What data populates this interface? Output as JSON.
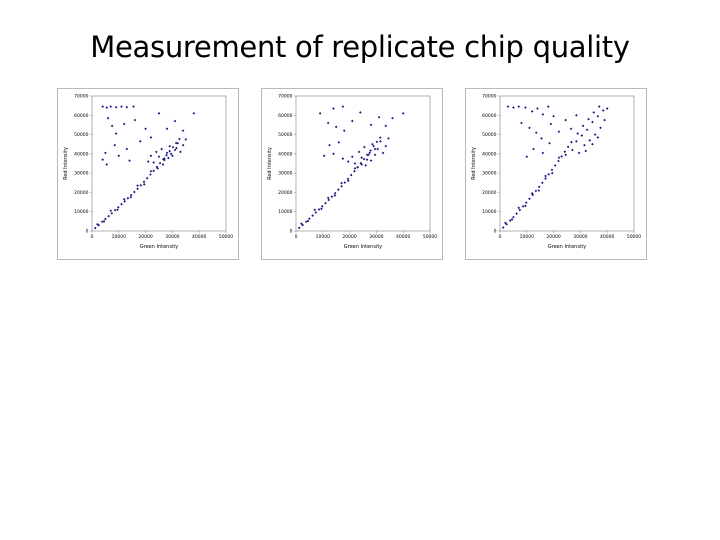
{
  "slide": {
    "title": "Measurement of replicate chip quality"
  },
  "style": {
    "marker_color": "#1a1a80",
    "plot_border": "#808080",
    "panel_border": "#b8b8b8"
  },
  "chart_data": [
    {
      "type": "scatter",
      "title": "",
      "xlabel": "Green Intensity",
      "ylabel": "Red Intensity",
      "xlim": [
        0,
        50000
      ],
      "ylim": [
        0,
        70000
      ],
      "xticks": [
        "0",
        "10000",
        "20000",
        "30000",
        "40000",
        "50000"
      ],
      "yticks": [
        "0",
        "10000",
        "20000",
        "30000",
        "40000",
        "50000",
        "60000",
        "70000"
      ],
      "grid": false,
      "series": [
        {
          "points": [
            [
              1200,
              1500
            ],
            [
              2500,
              3000
            ],
            [
              3800,
              4800
            ],
            [
              5000,
              6200
            ],
            [
              6200,
              7700
            ],
            [
              7400,
              9200
            ],
            [
              8600,
              10800
            ],
            [
              9800,
              12300
            ],
            [
              11000,
              13900
            ],
            [
              12200,
              15400
            ],
            [
              13400,
              17000
            ],
            [
              14600,
              18600
            ],
            [
              15800,
              20200
            ],
            [
              17000,
              21900
            ],
            [
              18200,
              23700
            ],
            [
              19400,
              25500
            ],
            [
              20600,
              27400
            ],
            [
              21800,
              29300
            ],
            [
              23000,
              31200
            ],
            [
              24200,
              33200
            ],
            [
              25400,
              35200
            ],
            [
              26600,
              37200
            ],
            [
              27800,
              39300
            ],
            [
              29000,
              41400
            ],
            [
              30200,
              43500
            ],
            [
              31400,
              45600
            ],
            [
              32600,
              47700
            ],
            [
              2000,
              3500
            ],
            [
              4500,
              5000
            ],
            [
              7000,
              10500
            ],
            [
              9500,
              11000
            ],
            [
              12000,
              16500
            ],
            [
              14500,
              17500
            ],
            [
              17000,
              23500
            ],
            [
              19500,
              24200
            ],
            [
              22000,
              31000
            ],
            [
              24500,
              32500
            ],
            [
              27000,
              37500
            ],
            [
              29500,
              40000
            ],
            [
              31500,
              43000
            ],
            [
              21000,
              36000
            ],
            [
              22000,
              39000
            ],
            [
              23000,
              35500
            ],
            [
              24000,
              41000
            ],
            [
              25000,
              38500
            ],
            [
              26000,
              42500
            ],
            [
              27000,
              36800
            ],
            [
              28000,
              40500
            ],
            [
              29000,
              44000
            ],
            [
              30000,
              39000
            ],
            [
              31000,
              42000
            ],
            [
              32000,
              45500
            ],
            [
              33000,
              41000
            ],
            [
              34000,
              44500
            ],
            [
              35000,
              47500
            ],
            [
              28500,
              37800
            ],
            [
              26500,
              34500
            ],
            [
              4000,
              64500
            ],
            [
              5500,
              64000
            ],
            [
              7000,
              64500
            ],
            [
              9000,
              64200
            ],
            [
              11000,
              64500
            ],
            [
              13000,
              64200
            ],
            [
              15500,
              64500
            ],
            [
              6000,
              58500
            ],
            [
              7500,
              54500
            ],
            [
              9000,
              50500
            ],
            [
              12000,
              55500
            ],
            [
              16000,
              57500
            ],
            [
              18000,
              46500
            ],
            [
              20000,
              53000
            ],
            [
              22000,
              48500
            ],
            [
              25000,
              61000
            ],
            [
              28000,
              53000
            ],
            [
              31000,
              57000
            ],
            [
              34000,
              52000
            ],
            [
              38000,
              61000
            ],
            [
              4000,
              37000
            ],
            [
              5000,
              40500
            ],
            [
              5500,
              34500
            ],
            [
              8500,
              44500
            ],
            [
              10000,
              39000
            ],
            [
              13000,
              42500
            ],
            [
              14000,
              36500
            ]
          ]
        }
      ]
    },
    {
      "type": "scatter",
      "title": "",
      "xlabel": "Green Intensity",
      "ylabel": "Red Intensity",
      "xlim": [
        0,
        50000
      ],
      "ylim": [
        0,
        70000
      ],
      "xticks": [
        "0",
        "10000",
        "20000",
        "30000",
        "40000",
        "50000"
      ],
      "yticks": [
        "0",
        "10000",
        "20000",
        "30000",
        "40000",
        "50000",
        "60000",
        "70000"
      ],
      "grid": false,
      "series": [
        {
          "points": [
            [
              1200,
              1600
            ],
            [
              2500,
              3100
            ],
            [
              3800,
              4800
            ],
            [
              5000,
              6400
            ],
            [
              6200,
              8000
            ],
            [
              7400,
              9600
            ],
            [
              8600,
              11200
            ],
            [
              9800,
              12800
            ],
            [
              11000,
              14400
            ],
            [
              12200,
              16100
            ],
            [
              13400,
              17800
            ],
            [
              14600,
              19600
            ],
            [
              15800,
              21400
            ],
            [
              17000,
              23200
            ],
            [
              18200,
              25100
            ],
            [
              19400,
              27000
            ],
            [
              20600,
              29000
            ],
            [
              21800,
              31000
            ],
            [
              23000,
              33100
            ],
            [
              24200,
              35200
            ],
            [
              25400,
              37300
            ],
            [
              26600,
              39500
            ],
            [
              27800,
              41700
            ],
            [
              29000,
              44000
            ],
            [
              30200,
              46200
            ],
            [
              31400,
              48400
            ],
            [
              2000,
              3800
            ],
            [
              4500,
              5200
            ],
            [
              7000,
              11000
            ],
            [
              9500,
              11500
            ],
            [
              12000,
              17200
            ],
            [
              14500,
              18400
            ],
            [
              17000,
              24800
            ],
            [
              19500,
              26000
            ],
            [
              22000,
              32500
            ],
            [
              24500,
              34500
            ],
            [
              27000,
              39500
            ],
            [
              29500,
              42500
            ],
            [
              19500,
              36000
            ],
            [
              21000,
              38500
            ],
            [
              22000,
              35000
            ],
            [
              23500,
              41000
            ],
            [
              24500,
              38000
            ],
            [
              25500,
              43500
            ],
            [
              26500,
              37000
            ],
            [
              27500,
              40500
            ],
            [
              28500,
              45000
            ],
            [
              29500,
              39500
            ],
            [
              30500,
              42500
            ],
            [
              31500,
              46500
            ],
            [
              32500,
              40500
            ],
            [
              33500,
              44000
            ],
            [
              34500,
              48000
            ],
            [
              28000,
              36500
            ],
            [
              26000,
              34000
            ],
            [
              23000,
              33000
            ],
            [
              14000,
              63500
            ],
            [
              17500,
              64500
            ],
            [
              9000,
              61000
            ],
            [
              12000,
              56000
            ],
            [
              15000,
              54000
            ],
            [
              18000,
              52000
            ],
            [
              21000,
              57000
            ],
            [
              24000,
              61500
            ],
            [
              28000,
              55000
            ],
            [
              31000,
              59000
            ],
            [
              33500,
              54500
            ],
            [
              36000,
              58500
            ],
            [
              40000,
              61000
            ],
            [
              10500,
              39000
            ],
            [
              12500,
              44500
            ],
            [
              14000,
              40000
            ],
            [
              16000,
              46000
            ],
            [
              17500,
              37500
            ]
          ]
        }
      ]
    },
    {
      "type": "scatter",
      "title": "",
      "xlabel": "Green Intensity",
      "ylabel": "Red Intensity",
      "xlim": [
        0,
        50000
      ],
      "ylim": [
        0,
        70000
      ],
      "xticks": [
        "0",
        "10000",
        "20000",
        "30000",
        "40000",
        "50000"
      ],
      "yticks": [
        "0",
        "10000",
        "20000",
        "30000",
        "40000",
        "50000",
        "60000",
        "70000"
      ],
      "grid": false,
      "series": [
        {
          "points": [
            [
              1200,
              1800
            ],
            [
              2500,
              3500
            ],
            [
              3800,
              5400
            ],
            [
              5000,
              7200
            ],
            [
              6200,
              9000
            ],
            [
              7400,
              10900
            ],
            [
              8600,
              12800
            ],
            [
              9800,
              14700
            ],
            [
              11000,
              16700
            ],
            [
              12200,
              18700
            ],
            [
              13400,
              20800
            ],
            [
              14600,
              22900
            ],
            [
              15800,
              25000
            ],
            [
              17000,
              27200
            ],
            [
              18200,
              29400
            ],
            [
              19400,
              31700
            ],
            [
              20600,
              34000
            ],
            [
              21800,
              36300
            ],
            [
              23000,
              38700
            ],
            [
              24200,
              41100
            ],
            [
              25400,
              43600
            ],
            [
              26600,
              46100
            ],
            [
              2000,
              4200
            ],
            [
              4500,
              6000
            ],
            [
              7000,
              12000
            ],
            [
              9500,
              13000
            ],
            [
              12000,
              19500
            ],
            [
              14500,
              21000
            ],
            [
              17000,
              28500
            ],
            [
              19500,
              30000
            ],
            [
              22000,
              38000
            ],
            [
              24500,
              39500
            ],
            [
              27000,
              42000
            ],
            [
              28500,
              46500
            ],
            [
              29500,
              40500
            ],
            [
              30500,
              49500
            ],
            [
              31500,
              44500
            ],
            [
              32500,
              52500
            ],
            [
              33500,
              47000
            ],
            [
              34500,
              56500
            ],
            [
              35500,
              50000
            ],
            [
              36500,
              59500
            ],
            [
              37500,
              53500
            ],
            [
              38500,
              62500
            ],
            [
              29000,
              50500
            ],
            [
              31000,
              54500
            ],
            [
              33000,
              58000
            ],
            [
              35000,
              61500
            ],
            [
              37000,
              64500
            ],
            [
              39000,
              57500
            ],
            [
              40000,
              63500
            ],
            [
              32000,
              41500
            ],
            [
              34500,
              45000
            ],
            [
              36500,
              48500
            ],
            [
              3000,
              64500
            ],
            [
              5000,
              64000
            ],
            [
              7000,
              64500
            ],
            [
              9500,
              64000
            ],
            [
              12000,
              62000
            ],
            [
              14000,
              63500
            ],
            [
              16000,
              60500
            ],
            [
              18000,
              64500
            ],
            [
              20000,
              59500
            ],
            [
              8000,
              56000
            ],
            [
              11000,
              53500
            ],
            [
              13500,
              51000
            ],
            [
              15500,
              48000
            ],
            [
              19000,
              55500
            ],
            [
              22000,
              51500
            ],
            [
              24500,
              57500
            ],
            [
              26500,
              53000
            ],
            [
              28500,
              60000
            ],
            [
              10000,
              38500
            ],
            [
              12500,
              42500
            ],
            [
              16000,
              40500
            ],
            [
              18500,
              45500
            ]
          ]
        }
      ]
    }
  ]
}
